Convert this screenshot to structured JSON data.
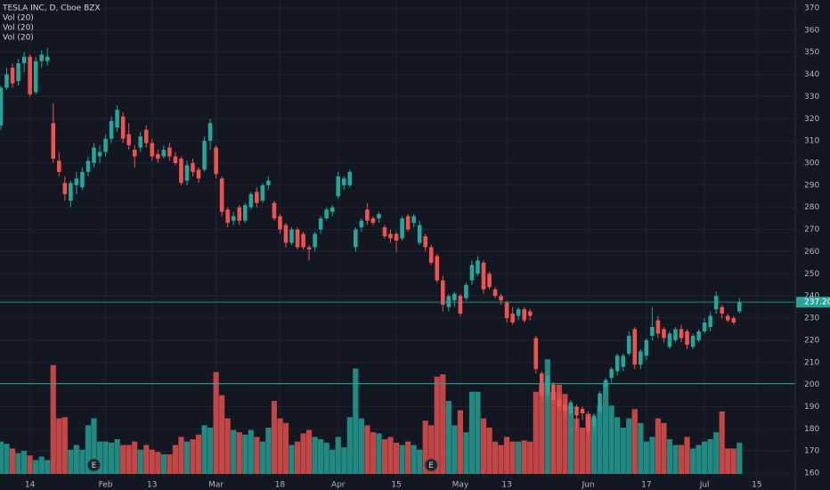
{
  "chart_data": {
    "type": "candlestick",
    "title": "TESLA INC, D, Cboe BZX",
    "indicators": [
      "Vol (20)",
      "Vol (20)",
      "Vol (20)"
    ],
    "up_color": "#26a69a",
    "down_color": "#ef5350",
    "grid": true,
    "categories": [
      null,
      null,
      null,
      null,
      null,
      "14",
      null,
      null,
      null,
      null,
      null,
      null,
      null,
      null,
      null,
      null,
      null,
      null,
      "Feb",
      null,
      null,
      null,
      null,
      null,
      null,
      null,
      "13",
      null,
      null,
      null,
      null,
      null,
      null,
      null,
      null,
      null,
      null,
      "Mar",
      null,
      null,
      null,
      null,
      null,
      null,
      null,
      null,
      null,
      null,
      "18",
      null,
      null,
      null,
      null,
      null,
      null,
      null,
      null,
      null,
      "Apr",
      null,
      null,
      null,
      null,
      null,
      null,
      null,
      null,
      null,
      "15",
      null,
      null,
      null,
      null,
      null,
      null,
      null,
      null,
      null,
      null,
      "May",
      null,
      null,
      null,
      null,
      null,
      null,
      null,
      "13",
      null,
      null,
      null,
      null,
      null,
      null,
      null,
      null,
      null,
      null,
      null,
      null,
      null,
      "Jun",
      null,
      null,
      null,
      null,
      null,
      null,
      null,
      null,
      null,
      "17",
      null,
      null,
      null,
      null,
      null,
      null,
      null,
      null,
      null,
      "Jul",
      null,
      null,
      null,
      null,
      null,
      null,
      null,
      null,
      "15"
    ],
    "open": [
      317,
      334,
      343,
      337,
      345,
      348,
      332,
      346,
      346,
      318,
      301,
      291,
      283,
      290,
      289,
      296,
      300,
      303,
      305,
      311,
      316,
      321,
      313,
      306,
      307,
      315,
      309,
      304,
      303,
      307,
      303,
      302,
      292,
      300,
      297,
      297,
      310,
      307,
      293,
      279,
      274,
      280,
      274,
      280,
      287,
      283,
      290,
      282,
      276,
      272,
      264,
      270,
      268,
      262,
      262,
      270,
      275,
      278,
      285,
      290,
      290,
      262,
      271,
      279,
      275,
      275,
      271,
      268,
      268,
      266,
      276,
      273,
      264,
      267,
      262,
      258,
      247,
      235,
      238,
      240,
      239,
      247,
      250,
      255,
      250,
      243,
      240,
      237,
      232,
      231,
      234,
      233,
      221,
      205,
      195,
      200,
      193,
      191,
      187,
      190,
      189,
      186,
      181,
      188,
      199,
      203,
      206,
      208,
      214,
      225,
      209,
      213,
      222,
      229,
      225,
      217,
      220,
      225,
      224,
      217,
      220,
      224,
      226,
      234,
      235,
      231,
      230,
      233,
      null,
      null,
      null
    ],
    "high": [
      335,
      343,
      345,
      347,
      350,
      349,
      348,
      351,
      352,
      327,
      305,
      294,
      292,
      296,
      298,
      303,
      309,
      308,
      313,
      321,
      326,
      323,
      318,
      308,
      314,
      317,
      311,
      306,
      308,
      309,
      305,
      303,
      301,
      302,
      298,
      312,
      320,
      308,
      294,
      280,
      278,
      281,
      282,
      287,
      289,
      291,
      294,
      283,
      277,
      273,
      271,
      271,
      269,
      263,
      269,
      276,
      280,
      281,
      296,
      294,
      297,
      271,
      275,
      282,
      276,
      278,
      272,
      270,
      269,
      276,
      277,
      277,
      274,
      268,
      263,
      259,
      249,
      241,
      242,
      241,
      246,
      256,
      258,
      256,
      251,
      244,
      241,
      238,
      235,
      235,
      235,
      234,
      222,
      206,
      206,
      201,
      196,
      193,
      193,
      191,
      190,
      188,
      187,
      197,
      203,
      208,
      214,
      214,
      224,
      226,
      216,
      221,
      235,
      231,
      226,
      224,
      226,
      227,
      225,
      223,
      225,
      230,
      233,
      242,
      236,
      232,
      231,
      239,
      null,
      null,
      null
    ],
    "low": [
      315,
      333,
      334,
      335,
      341,
      330,
      331,
      343,
      344,
      300,
      294,
      283,
      280,
      286,
      288,
      294,
      298,
      300,
      303,
      309,
      314,
      309,
      306,
      298,
      305,
      307,
      301,
      300,
      302,
      301,
      299,
      290,
      290,
      294,
      291,
      296,
      306,
      293,
      276,
      271,
      272,
      272,
      273,
      279,
      280,
      282,
      288,
      274,
      268,
      262,
      263,
      261,
      261,
      256,
      260,
      268,
      274,
      276,
      284,
      288,
      289,
      260,
      269,
      272,
      272,
      273,
      266,
      264,
      260,
      265,
      269,
      271,
      263,
      260,
      254,
      246,
      233,
      233,
      235,
      231,
      238,
      245,
      249,
      241,
      243,
      239,
      236,
      228,
      227,
      229,
      228,
      229,
      205,
      193,
      193,
      191,
      188,
      185,
      186,
      180,
      184,
      177,
      179,
      187,
      196,
      201,
      204,
      206,
      213,
      207,
      207,
      211,
      220,
      221,
      219,
      216,
      219,
      219,
      216,
      216,
      219,
      223,
      224,
      232,
      230,
      228,
      227,
      232,
      null,
      null,
      null
    ],
    "close": [
      334,
      340,
      336,
      345,
      348,
      331,
      346,
      349,
      348,
      302,
      296,
      286,
      291,
      293,
      296,
      301,
      307,
      305,
      311,
      319,
      324,
      311,
      308,
      303,
      312,
      309,
      303,
      302,
      306,
      303,
      300,
      291,
      299,
      296,
      293,
      310,
      318,
      295,
      278,
      273,
      276,
      274,
      281,
      286,
      282,
      290,
      292,
      275,
      270,
      264,
      270,
      262,
      262,
      261,
      268,
      275,
      279,
      280,
      294,
      293,
      296,
      270,
      274,
      274,
      273,
      277,
      267,
      266,
      265,
      275,
      270,
      276,
      272,
      262,
      255,
      247,
      236,
      240,
      241,
      232,
      245,
      254,
      256,
      243,
      244,
      240,
      238,
      230,
      228,
      234,
      229,
      231,
      207,
      195,
      204,
      193,
      190,
      188,
      192,
      186,
      187,
      179,
      186,
      196,
      202,
      207,
      213,
      213,
      222,
      209,
      215,
      220,
      226,
      223,
      221,
      223,
      225,
      221,
      218,
      222,
      224,
      228,
      231,
      240,
      232,
      229,
      228,
      237.2,
      null,
      null,
      null
    ],
    "volume": [
      28,
      26,
      22,
      18,
      20,
      16,
      12,
      15,
      12,
      94,
      48,
      49,
      21,
      25,
      21,
      42,
      48,
      28,
      28,
      27,
      30,
      25,
      25,
      28,
      21,
      25,
      21,
      19,
      17,
      17,
      25,
      32,
      28,
      30,
      34,
      42,
      40,
      88,
      68,
      48,
      38,
      36,
      34,
      38,
      32,
      28,
      40,
      63,
      48,
      44,
      25,
      28,
      35,
      38,
      32,
      30,
      27,
      21,
      32,
      23,
      49,
      91,
      48,
      42,
      36,
      35,
      30,
      32,
      27,
      25,
      28,
      25,
      21,
      46,
      42,
      84,
      86,
      63,
      42,
      55,
      36,
      71,
      71,
      48,
      40,
      28,
      25,
      32,
      28,
      28,
      29,
      28,
      71,
      78,
      99,
      71,
      77,
      69,
      59,
      48,
      40,
      52,
      48,
      59,
      78,
      59,
      49,
      40,
      48,
      56,
      44,
      28,
      32,
      48,
      44,
      30,
      25,
      25,
      32,
      22,
      25,
      28,
      30,
      36,
      54,
      22,
      22,
      27,
      null,
      null,
      null
    ],
    "ylim": [
      152.4,
      373.6
    ],
    "y2lim": [
      0,
      100
    ],
    "yticks": [
      160,
      170,
      180,
      190,
      200,
      210,
      220,
      230,
      240,
      250,
      260,
      270,
      280,
      290,
      300,
      310,
      320,
      330,
      340,
      350,
      360,
      370
    ],
    "last_price": {
      "value": 237.2,
      "label": "237.20"
    },
    "level_line": 200.4,
    "events": [
      {
        "index": 16,
        "label": "E"
      },
      {
        "index": 74,
        "label": "E"
      }
    ]
  }
}
